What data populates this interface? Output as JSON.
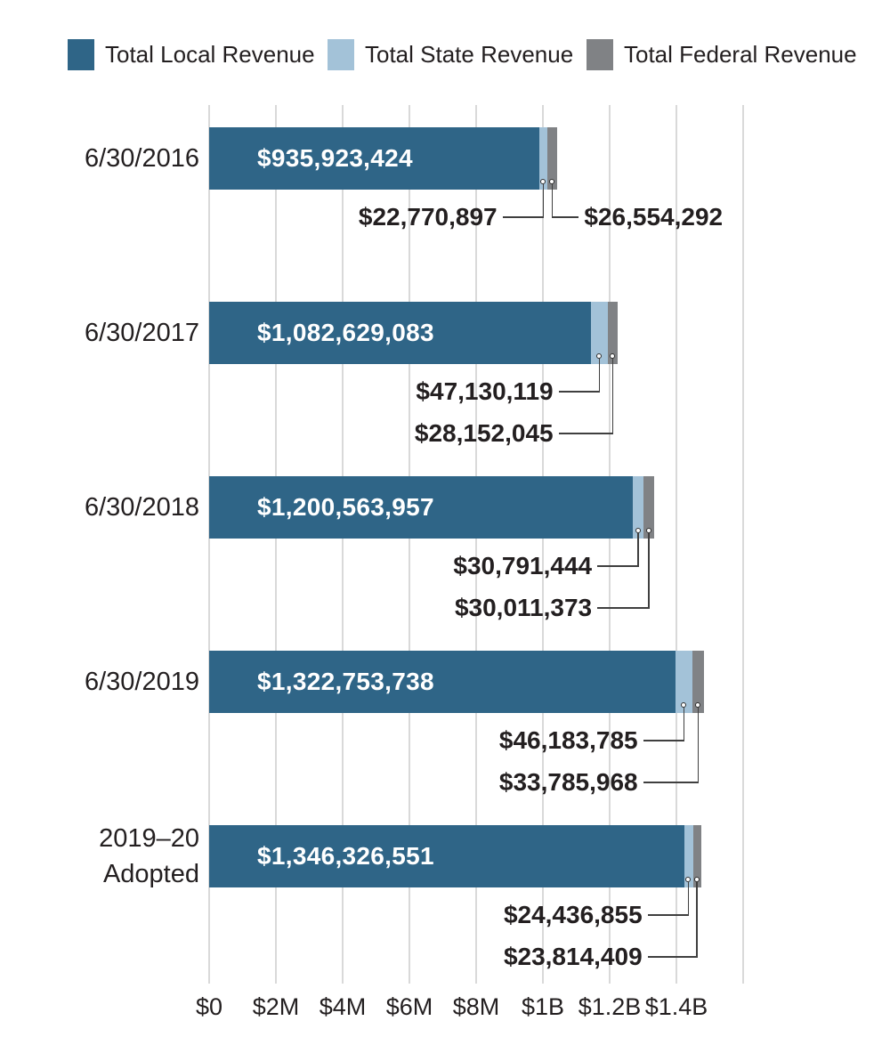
{
  "legend": {
    "items": [
      {
        "label": "Total Local Revenue",
        "color": "#2f6587"
      },
      {
        "label": "Total State Revenue",
        "color": "#a3c2d8"
      },
      {
        "label": "Total Federal Revenue",
        "color": "#808285"
      }
    ]
  },
  "colors": {
    "background": "#ffffff",
    "text": "#231f20",
    "gridline": "#d9d9d9",
    "bar_value_text": "#ffffff",
    "leader_line": "#3f3f3f",
    "local": "#2f6587",
    "state": "#a3c2d8",
    "federal": "#808285"
  },
  "chart_data": {
    "type": "bar",
    "orientation": "horizontal",
    "stacked": true,
    "title": "",
    "xlabel": "",
    "ylabel": "",
    "legend_position": "top",
    "grid": true,
    "gridline_count": 9,
    "categories": [
      "6/30/2016",
      "6/30/2017",
      "6/30/2018",
      "6/30/2019",
      "2019–20 Adopted"
    ],
    "category_lines": [
      [
        "6/30/2016"
      ],
      [
        "6/30/2017"
      ],
      [
        "6/30/2018"
      ],
      [
        "6/30/2019"
      ],
      [
        "2019–20",
        "Adopted"
      ]
    ],
    "series": [
      {
        "name": "Total Local Revenue",
        "color": "#2f6587",
        "values": [
          935923424,
          1082629083,
          1200563957,
          1322753738,
          1346326551
        ],
        "labels": [
          "$935,923,424",
          "$1,082,629,083",
          "$1,200,563,957",
          "$1,322,753,738",
          "$1,346,326,551"
        ]
      },
      {
        "name": "Total State Revenue",
        "color": "#a3c2d8",
        "values": [
          22770897,
          47130119,
          30791444,
          46183785,
          24436855
        ],
        "labels": [
          "$22,770,897",
          "$47,130,119",
          "$30,791,444",
          "$46,183,785",
          "$24,436,855"
        ]
      },
      {
        "name": "Total Federal Revenue",
        "color": "#808285",
        "values": [
          26554292,
          28152045,
          30011373,
          33785968,
          23814409
        ],
        "labels": [
          "$26,554,292",
          "$28,152,045",
          "$30,011,373",
          "$33,785,968",
          "$23,814,409"
        ]
      }
    ],
    "x_axis": {
      "tick_labels": [
        "$0",
        "$2M",
        "$4M",
        "$6M",
        "$8M",
        "$1B",
        "$1.2B",
        "$1.4B"
      ]
    }
  }
}
